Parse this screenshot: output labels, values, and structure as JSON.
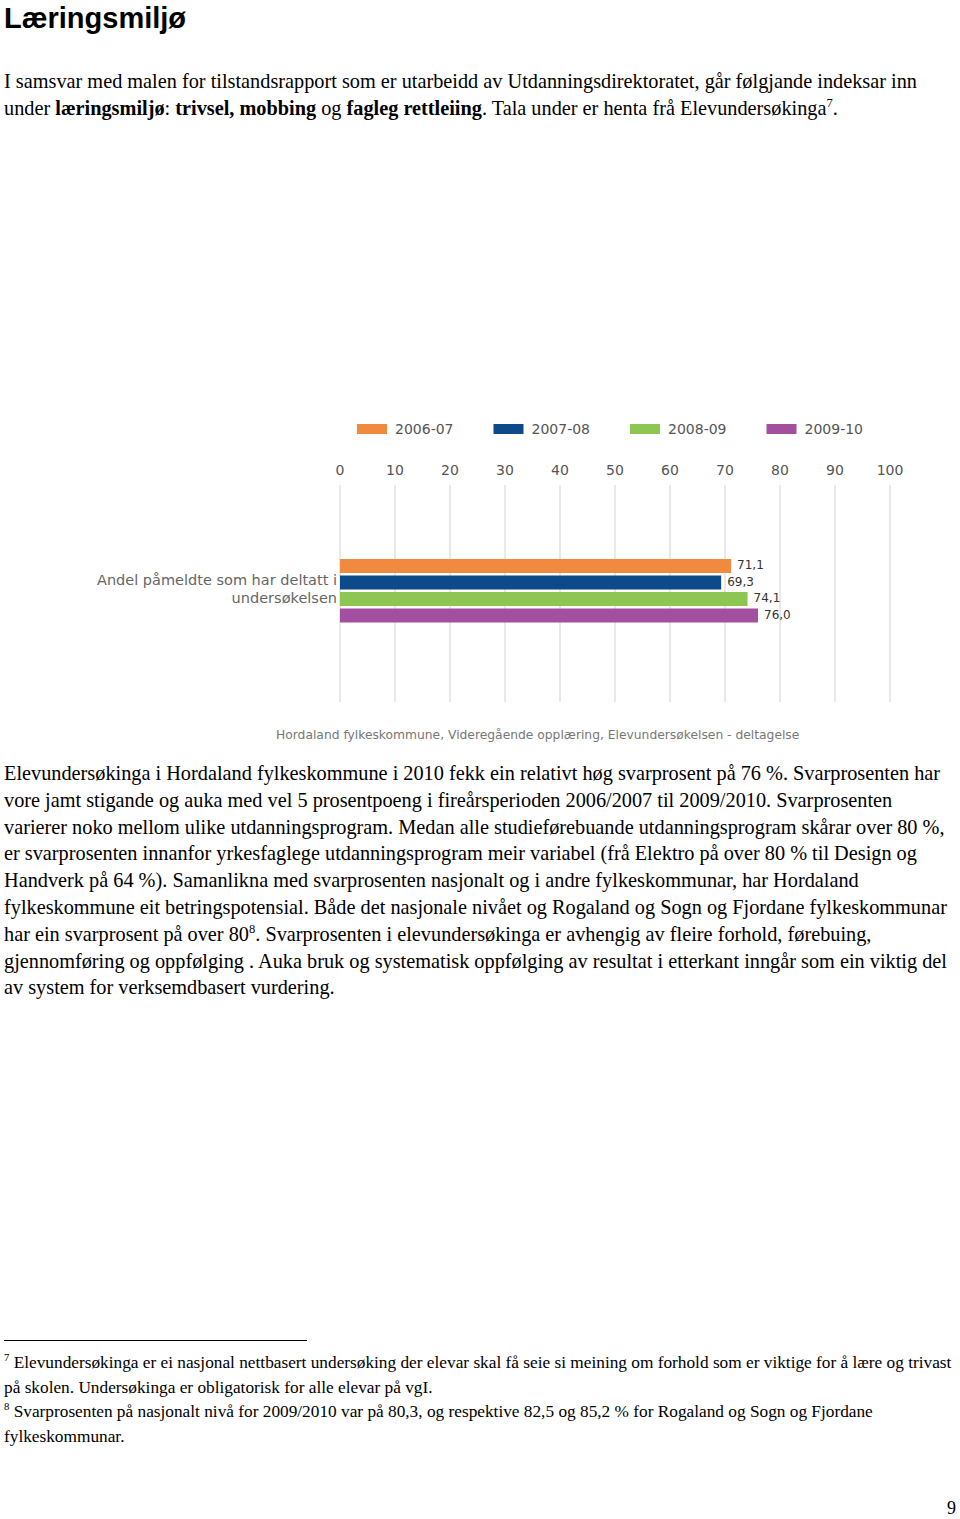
{
  "header": {
    "title": "Læringsmiljø"
  },
  "body": {
    "paragraphs": [
      {
        "runs": [
          {
            "text": "I samsvar med malen for tilstandsrapport som er utarbeidd av Utdanningsdirektoratet, går følgjande indeksar inn under "
          },
          {
            "bold": "læringsmiljø"
          },
          {
            "text": ": "
          },
          {
            "bold": "trivsel, mobbing"
          },
          {
            "text": " og "
          },
          {
            "bold": "fagleg rettleiing"
          },
          {
            "text": ". Tala under er henta frå Elevundersøkinga"
          },
          {
            "sup": "7"
          },
          {
            "text": "."
          }
        ]
      },
      {
        "runs": [
          {
            "text": "Elevundersøkinga i Hordaland fylkeskommune i 2010 fekk ein relativt høg svarprosent på 76 %. Svarprosenten har vore jamt stigande og auka med vel 5 prosentpoeng i fireårsperioden 2006/2007 til 2009/2010. Svarprosenten varierer noko mellom ulike utdanningsprogram. Medan alle studieførebuande utdanningsprogram skårar over 80 %, er svarprosenten innanfor yrkesfaglege utdanningsprogram meir variabel (frå Elektro på over 80 % til Design og Handverk på 64 %). Samanlikna med svarprosenten nasjonalt og i andre fylkeskommunar, har Hordaland fylkeskommune eit betringspotensial. Både det nasjonale nivået og Rogaland og Sogn og Fjordane fylkeskommunar har ein svarprosent på over 80"
          },
          {
            "sup": "8"
          },
          {
            "text": ". Svarprosenten i elevundersøkinga er avhengig av fleire forhold, førebuing, gjennomføring og oppfølging . Auka bruk og systematisk oppfølging av resultat i etterkant inngår som ein viktig del av system for verksemdbasert vurdering."
          }
        ]
      }
    ]
  },
  "chart_data": {
    "type": "bar",
    "orientation": "horizontal",
    "title": "Hordaland fylkeskommune, Videregående opplæring, Elevundersøkelsen - deltagelse",
    "categories": [
      "Andel påmeldte som har deltatt i undersøkelsen"
    ],
    "series": [
      {
        "name": "2006-07",
        "color": "#f08a3e",
        "values": [
          71.1
        ],
        "value_labels": [
          "71,1"
        ]
      },
      {
        "name": "2007-08",
        "color": "#0c4a8a",
        "values": [
          69.3
        ],
        "value_labels": [
          "69,3"
        ]
      },
      {
        "name": "2008-09",
        "color": "#8dc653",
        "values": [
          74.1
        ],
        "value_labels": [
          "74,1"
        ]
      },
      {
        "name": "2009-10",
        "color": "#a24fa0",
        "values": [
          76.0
        ],
        "value_labels": [
          "76,0"
        ]
      }
    ],
    "xlim": [
      0,
      100
    ],
    "xticks": [
      0,
      10,
      20,
      30,
      40,
      50,
      60,
      70,
      80,
      90,
      100
    ],
    "grid": true,
    "legend": "top",
    "data_labels": true
  },
  "footnotes": [
    {
      "marker": "7",
      "text": "Elevundersøkinga er ei nasjonal nettbasert undersøking der elevar skal få seie si meining om forhold som er viktige for å lære og trivast på skolen. Undersøkinga er obligatorisk for alle elevar på vgI."
    },
    {
      "marker": "8",
      "text": "Svarprosenten på nasjonalt nivå for 2009/2010 var på 80,3, og respektive 82,5 og 85,2 % for Rogaland og Sogn og Fjordane fylkeskommunar."
    }
  ],
  "footer": {
    "page_number": "9"
  }
}
